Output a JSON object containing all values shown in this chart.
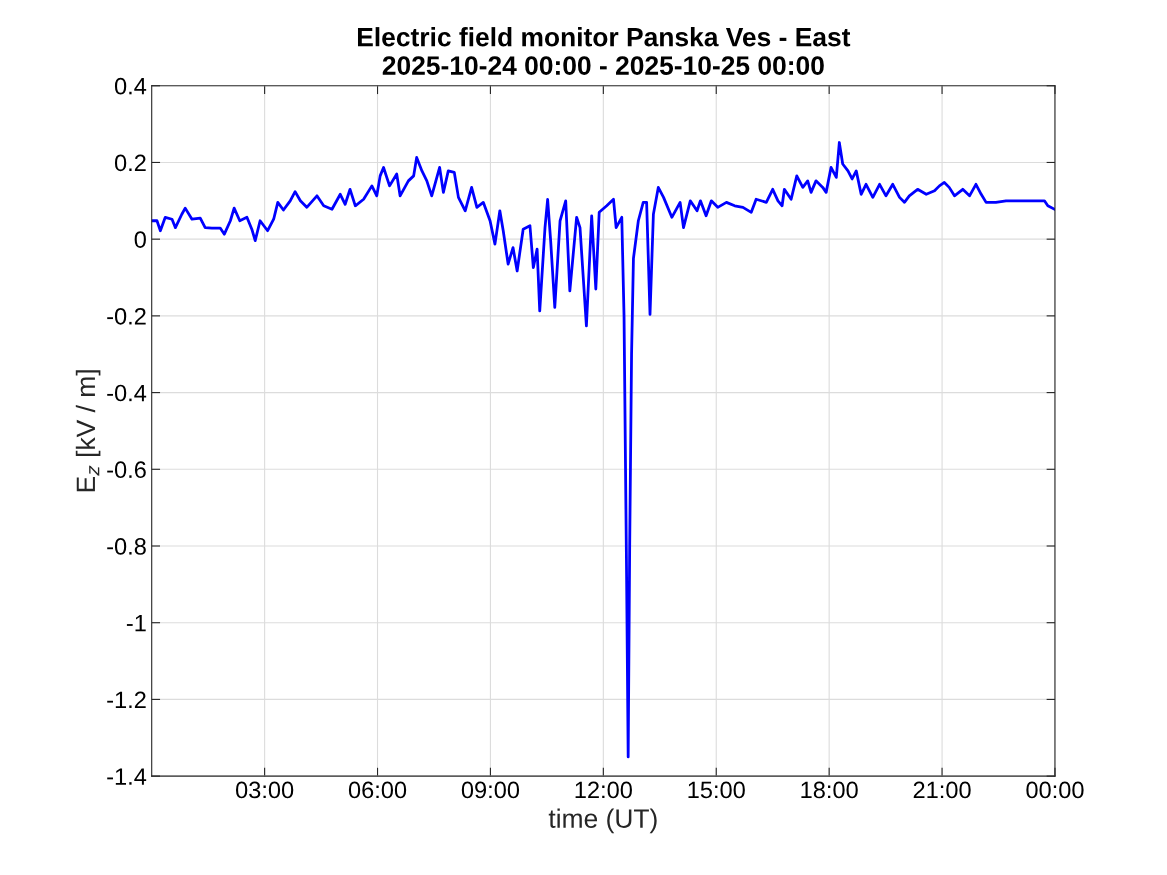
{
  "chart_data": {
    "type": "line",
    "title": "Electric field monitor Panska Ves - East",
    "subtitle": "2025-10-24 00:00 - 2025-10-25 00:00",
    "xlabel": "time (UT)",
    "ylabel": "E$_{z}$ [kV / m]",
    "x": [
      0.0,
      0.14,
      0.23,
      0.36,
      0.54,
      0.63,
      0.8,
      0.89,
      1.07,
      1.29,
      1.42,
      1.6,
      1.82,
      1.93,
      2.09,
      2.19,
      2.34,
      2.53,
      2.66,
      2.75,
      2.88,
      3.08,
      3.24,
      3.35,
      3.5,
      3.68,
      3.81,
      3.95,
      4.12,
      4.39,
      4.57,
      4.79,
      5.01,
      5.14,
      5.27,
      5.41,
      5.63,
      5.85,
      5.98,
      6.07,
      6.16,
      6.32,
      6.51,
      6.6,
      6.82,
      6.96,
      7.04,
      7.18,
      7.31,
      7.44,
      7.65,
      7.75,
      7.88,
      8.04,
      8.15,
      8.33,
      8.5,
      8.64,
      8.81,
      8.99,
      9.12,
      9.25,
      9.34,
      9.47,
      9.6,
      9.71,
      9.87,
      10.05,
      10.14,
      10.24,
      10.31,
      10.45,
      10.52,
      10.6,
      10.71,
      10.85,
      11.0,
      11.11,
      11.29,
      11.38,
      11.55,
      11.69,
      11.8,
      11.89,
      12.09,
      12.27,
      12.34,
      12.49,
      12.55,
      12.62,
      12.66,
      12.7,
      12.75,
      12.8,
      12.93,
      13.06,
      13.15,
      13.24,
      13.33,
      13.46,
      13.6,
      13.82,
      14.04,
      14.13,
      14.31,
      14.49,
      14.58,
      14.73,
      14.87,
      15.04,
      15.27,
      15.49,
      15.71,
      15.93,
      16.06,
      16.33,
      16.5,
      16.64,
      16.75,
      16.81,
      16.99,
      17.14,
      17.3,
      17.43,
      17.52,
      17.65,
      17.83,
      17.92,
      18.05,
      18.19,
      18.27,
      18.36,
      18.5,
      18.61,
      18.72,
      18.85,
      18.98,
      19.16,
      19.34,
      19.51,
      19.69,
      19.87,
      20.0,
      20.13,
      20.35,
      20.58,
      20.8,
      20.93,
      21.06,
      21.19,
      21.33,
      21.55,
      21.73,
      21.9,
      22.04,
      22.17,
      22.43,
      22.7,
      22.96,
      23.23,
      23.5,
      23.72,
      23.81,
      23.99
    ],
    "series": [
      {
        "color": "#0000ff",
        "values": [
          0.048,
          0.048,
          0.022,
          0.057,
          0.052,
          0.03,
          0.065,
          0.081,
          0.052,
          0.055,
          0.03,
          0.029,
          0.029,
          0.013,
          0.048,
          0.081,
          0.048,
          0.057,
          0.026,
          -0.004,
          0.048,
          0.022,
          0.052,
          0.096,
          0.076,
          0.1,
          0.124,
          0.1,
          0.083,
          0.113,
          0.087,
          0.078,
          0.117,
          0.091,
          0.13,
          0.087,
          0.104,
          0.139,
          0.113,
          0.165,
          0.187,
          0.139,
          0.17,
          0.113,
          0.152,
          0.165,
          0.213,
          0.178,
          0.152,
          0.113,
          0.187,
          0.122,
          0.178,
          0.174,
          0.109,
          0.074,
          0.135,
          0.083,
          0.096,
          0.048,
          -0.013,
          0.074,
          0.022,
          -0.065,
          -0.022,
          -0.083,
          0.026,
          0.035,
          -0.074,
          -0.026,
          -0.187,
          0.03,
          0.104,
          -0.004,
          -0.178,
          0.048,
          0.1,
          -0.135,
          0.057,
          0.03,
          -0.226,
          0.061,
          -0.13,
          0.07,
          0.087,
          0.104,
          0.03,
          0.057,
          -0.2,
          -0.9,
          -1.35,
          -0.8,
          -0.3,
          -0.05,
          0.048,
          0.096,
          0.096,
          -0.196,
          0.065,
          0.135,
          0.109,
          0.057,
          0.096,
          0.03,
          0.1,
          0.074,
          0.1,
          0.061,
          0.1,
          0.083,
          0.096,
          0.087,
          0.083,
          0.07,
          0.104,
          0.096,
          0.13,
          0.1,
          0.087,
          0.13,
          0.104,
          0.165,
          0.135,
          0.152,
          0.122,
          0.152,
          0.135,
          0.122,
          0.187,
          0.161,
          0.252,
          0.196,
          0.178,
          0.157,
          0.178,
          0.117,
          0.143,
          0.109,
          0.143,
          0.113,
          0.143,
          0.109,
          0.096,
          0.113,
          0.13,
          0.117,
          0.126,
          0.139,
          0.148,
          0.135,
          0.113,
          0.13,
          0.113,
          0.143,
          0.117,
          0.096,
          0.096,
          0.1,
          0.1,
          0.1,
          0.1,
          0.1,
          0.087,
          0.078
        ]
      }
    ],
    "xlim": [
      0,
      24
    ],
    "xticks": [
      {
        "value": 3,
        "label": "03:00"
      },
      {
        "value": 6,
        "label": "06:00"
      },
      {
        "value": 9,
        "label": "09:00"
      },
      {
        "value": 12,
        "label": "12:00"
      },
      {
        "value": 15,
        "label": "15:00"
      },
      {
        "value": 18,
        "label": "18:00"
      },
      {
        "value": 21,
        "label": "21:00"
      },
      {
        "value": 24,
        "label": "00:00"
      }
    ],
    "ylim": [
      -1.4,
      0.4
    ],
    "yticks": [
      -1.4,
      -1.2,
      -1,
      -0.8,
      -0.6,
      -0.4,
      -0.2,
      0,
      0.2,
      0.4
    ],
    "grid": true,
    "marker": "none",
    "line_style": "solid"
  }
}
